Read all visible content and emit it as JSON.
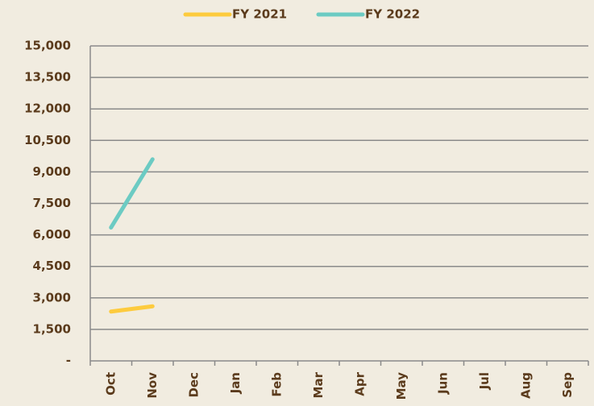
{
  "chart_data": {
    "type": "line",
    "categories": [
      "Oct",
      "Nov",
      "Dec",
      "Jan",
      "Feb",
      "Mar",
      "Apr",
      "May",
      "Jun",
      "Jul",
      "Aug",
      "Sep"
    ],
    "series": [
      {
        "name": "FY 2021",
        "color": "#fdcb3e",
        "values": [
          2350,
          2600,
          null,
          null,
          null,
          null,
          null,
          null,
          null,
          null,
          null,
          null
        ]
      },
      {
        "name": "FY 2022",
        "color": "#6ccbc3",
        "values": [
          6350,
          9600,
          null,
          null,
          null,
          null,
          null,
          null,
          null,
          null,
          null,
          null
        ]
      }
    ],
    "ylim": [
      0,
      15000
    ],
    "yticks": [
      {
        "value": 0,
        "label": "-"
      },
      {
        "value": 1500,
        "label": "1,500"
      },
      {
        "value": 3000,
        "label": "3,000"
      },
      {
        "value": 4500,
        "label": "4,500"
      },
      {
        "value": 6000,
        "label": "6,000"
      },
      {
        "value": 7500,
        "label": "7,500"
      },
      {
        "value": 9000,
        "label": "9,000"
      },
      {
        "value": 10500,
        "label": "10,500"
      },
      {
        "value": 12000,
        "label": "12,000"
      },
      {
        "value": 13500,
        "label": "13,500"
      },
      {
        "value": 15000,
        "label": "15,000"
      }
    ],
    "grid": true,
    "legend": "top"
  }
}
